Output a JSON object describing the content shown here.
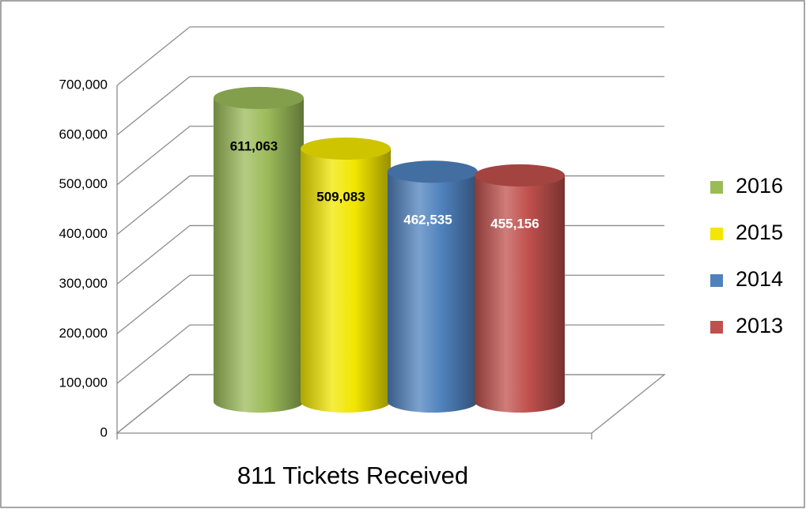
{
  "chart_data": {
    "type": "bar3d",
    "categories": [
      "811 Tickets Received"
    ],
    "series": [
      {
        "name": "2016",
        "color": "#9bbb59",
        "values": [
          611063
        ],
        "value_labels": [
          "611,063"
        ]
      },
      {
        "name": "2015",
        "color": "#f2e600",
        "values": [
          509083
        ],
        "value_labels": [
          "509,083"
        ]
      },
      {
        "name": "2014",
        "color": "#4f81bd",
        "values": [
          462535
        ],
        "value_labels": [
          "462,535"
        ]
      },
      {
        "name": "2013",
        "color": "#c0504d",
        "values": [
          455156
        ],
        "value_labels": [
          "455,156"
        ]
      }
    ],
    "ylim": [
      0,
      700000
    ],
    "yticks": [
      0,
      {
        "value": 100000,
        "label": "100,000"
      },
      {
        "value": 200000,
        "label": "200,000"
      },
      {
        "value": 300000,
        "label": "300,000"
      },
      {
        "value": 400000,
        "label": "400,000"
      },
      {
        "value": 500000,
        "label": "500,000"
      },
      {
        "value": 600000,
        "label": "600,000"
      },
      {
        "value": 700000,
        "label": "700,000"
      }
    ],
    "grid": true,
    "legend": "right"
  }
}
